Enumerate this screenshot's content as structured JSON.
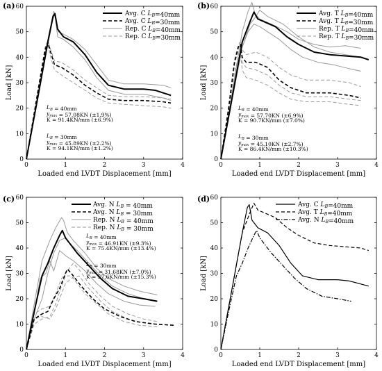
{
  "figure": {
    "panels": [
      "(a)",
      "(b)",
      "(c)",
      "(d)"
    ]
  },
  "chart_data": [
    {
      "type": "line",
      "panel_label": "(a)",
      "xlabel": "Loaded end LVDT Displacement [mm]",
      "ylabel": "Load [kN]",
      "xlim": [
        0,
        4
      ],
      "ylim": [
        0,
        60
      ],
      "xticks": [
        "0",
        "1",
        "2",
        "3",
        "4"
      ],
      "yticks": [
        "0",
        "10",
        "20",
        "30",
        "40",
        "50",
        "60"
      ],
      "legend": {
        "position": "top-right",
        "entries": [
          {
            "label": "Avg. C LB=40mm",
            "style": "solid-bold"
          },
          {
            "label": "Avg. C LB=30mm",
            "style": "dashed-bold"
          },
          {
            "label": "Rep. C LB=40mm",
            "style": "solid-gray"
          },
          {
            "label": "Rep. C LB=30mm",
            "style": "dashed-gray"
          }
        ]
      },
      "annotations": [
        "LB = 40mm",
        "ymax = 57.08KN (±1.9%)",
        "K = 91.4KN/mm (±6.9%)",
        "LB = 30mm",
        "ymax = 45.89KN (±2.2%)",
        "K = 94.1KN/mm (±1.2%)"
      ],
      "series": [
        {
          "style": "solid-bold",
          "x": [
            0,
            0.3,
            0.55,
            0.68,
            0.73,
            0.8,
            0.95,
            1.2,
            1.5,
            1.8,
            2.1,
            2.5,
            3.0,
            3.3,
            3.7
          ],
          "y": [
            0,
            25,
            46,
            56,
            57.1,
            51,
            48,
            46,
            41,
            34,
            29,
            27.5,
            27.5,
            27,
            25
          ]
        },
        {
          "style": "dashed-bold",
          "x": [
            0,
            0.3,
            0.48,
            0.55,
            0.62,
            0.72,
            0.9,
            1.2,
            1.5,
            1.8,
            2.1,
            2.5,
            3.0,
            3.5,
            3.7
          ],
          "y": [
            0,
            27,
            43,
            45.9,
            42,
            37,
            36,
            33,
            29,
            26,
            23.5,
            23,
            23,
            22.5,
            22
          ]
        },
        {
          "style": "solid-gray",
          "x": [
            0,
            0.3,
            0.55,
            0.7,
            0.75,
            0.82,
            0.95,
            1.2,
            1.5,
            1.8,
            2.1,
            2.5,
            3.0,
            3.5,
            3.7
          ],
          "y": [
            0,
            26,
            47,
            58,
            56,
            50,
            49,
            47,
            43,
            37,
            31,
            29.5,
            29.5,
            29,
            28
          ]
        },
        {
          "style": "solid-gray",
          "x": [
            0,
            0.3,
            0.55,
            0.68,
            0.73,
            0.8,
            0.95,
            1.2,
            1.5,
            1.8,
            2.1,
            2.5,
            3.0,
            3.5,
            3.7
          ],
          "y": [
            0,
            24,
            45,
            55,
            56.5,
            48,
            47,
            44,
            39,
            32,
            27,
            25.5,
            25.5,
            24,
            23
          ]
        },
        {
          "style": "dashed-gray",
          "x": [
            0,
            0.3,
            0.48,
            0.55,
            0.62,
            0.72,
            0.9,
            1.2,
            1.5,
            1.8,
            2.1,
            2.5,
            3.0,
            3.5,
            3.7
          ],
          "y": [
            0,
            28,
            44,
            46.5,
            43,
            38.5,
            38,
            35,
            31,
            28,
            25,
            24.5,
            24.5,
            24,
            23.5
          ]
        },
        {
          "style": "dashed-gray",
          "x": [
            0,
            0.3,
            0.48,
            0.55,
            0.62,
            0.72,
            0.9,
            1.2,
            1.5,
            1.8,
            2.1,
            2.5,
            3.0,
            3.5,
            3.7
          ],
          "y": [
            0,
            26,
            42,
            45,
            40,
            35,
            33,
            30,
            27,
            24,
            22,
            21.5,
            21,
            20.5,
            20
          ]
        }
      ]
    },
    {
      "type": "line",
      "panel_label": "(b)",
      "xlabel": "Loaded end LVDT Displacement [mm]",
      "ylabel": "Load [kN]",
      "xlim": [
        0,
        4
      ],
      "ylim": [
        0,
        60
      ],
      "xticks": [
        "0",
        "1",
        "2",
        "3",
        "4"
      ],
      "yticks": [
        "0",
        "10",
        "20",
        "30",
        "40",
        "50",
        "60"
      ],
      "legend": {
        "position": "top-right",
        "entries": [
          {
            "label": "Avg. T LB=40mm",
            "style": "solid-bold"
          },
          {
            "label": "Avg. T LB=30mm",
            "style": "dashed-bold"
          },
          {
            "label": "Rep. T LB=40mm",
            "style": "solid-gray"
          },
          {
            "label": "Rep. T LB=30mm",
            "style": "dashed-gray"
          }
        ]
      },
      "annotations": [
        "LB = 40mm",
        "ymax = 57.70KN (±6.9%)",
        "K = 90.7KN/mm (±7.0%)",
        "LB = 30mm",
        "ymax = 45.10KN (±2.7%)",
        "K = 86.4KN/mm (±10.3%)"
      ],
      "series": [
        {
          "style": "solid-bold",
          "x": [
            0,
            0.3,
            0.55,
            0.75,
            0.85,
            0.95,
            1.1,
            1.4,
            1.7,
            2.0,
            2.4,
            2.8,
            3.2,
            3.6,
            3.8
          ],
          "y": [
            0,
            25,
            46,
            54,
            57.7,
            55,
            54,
            52,
            48,
            45,
            42,
            41,
            40.5,
            40,
            39
          ]
        },
        {
          "style": "dashed-bold",
          "x": [
            0,
            0.2,
            0.35,
            0.45,
            0.5,
            0.55,
            0.65,
            0.9,
            1.2,
            1.5,
            1.8,
            2.2,
            2.8,
            3.3,
            3.6
          ],
          "y": [
            0,
            20,
            38,
            44,
            45.1,
            40,
            38,
            38,
            36,
            31,
            28,
            26,
            26,
            25,
            24
          ]
        },
        {
          "style": "solid-gray",
          "x": [
            0,
            0.3,
            0.55,
            0.7,
            0.8,
            0.88,
            1.0,
            1.3,
            1.7,
            2.0,
            2.4,
            2.8,
            3.2,
            3.6
          ],
          "y": [
            0,
            27,
            50,
            58,
            61.5,
            57,
            55,
            53,
            50,
            47,
            45,
            44,
            44.5,
            43.5
          ]
        },
        {
          "style": "solid-gray",
          "x": [
            0,
            0.3,
            0.55,
            0.75,
            0.9,
            1.0,
            1.2,
            1.6,
            2.0,
            2.4,
            2.8,
            3.2,
            3.6
          ],
          "y": [
            0,
            24,
            44,
            53,
            56,
            58.5,
            56,
            53,
            48,
            44,
            42,
            41,
            40
          ]
        },
        {
          "style": "solid-gray",
          "x": [
            0,
            0.3,
            0.55,
            0.7,
            0.85,
            1.0,
            1.2,
            1.5,
            1.8,
            2.1,
            2.5,
            2.9,
            3.3,
            3.6
          ],
          "y": [
            0,
            24,
            44,
            50,
            53,
            52,
            50,
            47,
            43,
            40,
            38,
            37,
            35.5,
            34.5
          ]
        },
        {
          "style": "dashed-gray",
          "x": [
            0,
            0.2,
            0.35,
            0.45,
            0.5,
            0.55,
            0.65,
            0.9,
            1.2,
            1.5,
            1.8,
            2.2,
            2.8,
            3.3,
            3.6
          ],
          "y": [
            0,
            21,
            39,
            45,
            46,
            43,
            41,
            42,
            40,
            36,
            33,
            31,
            31,
            30,
            28.5
          ]
        },
        {
          "style": "dashed-gray",
          "x": [
            0,
            0.2,
            0.35,
            0.45,
            0.5,
            0.55,
            0.65,
            0.9,
            1.2,
            1.5,
            1.8,
            2.2,
            2.8,
            3.3,
            3.6
          ],
          "y": [
            0,
            20,
            37,
            43,
            44,
            38,
            36,
            35,
            33,
            29,
            26,
            24.5,
            24.5,
            23.5,
            23
          ]
        },
        {
          "style": "dashed-gray",
          "x": [
            0,
            0.2,
            0.35,
            0.45,
            0.5,
            0.55,
            0.65,
            0.9,
            1.2,
            1.5,
            1.8,
            2.2,
            2.8,
            3.3,
            3.6
          ],
          "y": [
            0,
            18,
            34,
            40,
            42,
            35,
            32,
            31,
            29,
            26,
            23.5,
            22.5,
            22.5,
            21.5,
            21
          ]
        }
      ]
    },
    {
      "type": "line",
      "panel_label": "(c)",
      "xlabel": "Loaded end LVDT Displacement [mm]",
      "ylabel": "Load [kN]",
      "xlim": [
        0,
        4
      ],
      "ylim": [
        0,
        60
      ],
      "xticks": [
        "0",
        "1",
        "2",
        "3",
        "4"
      ],
      "yticks": [
        "0",
        "10",
        "20",
        "30",
        "40",
        "50",
        "60"
      ],
      "legend": {
        "position": "top-right",
        "entries": [
          {
            "label": "Avg. N LB = 40mm",
            "style": "solid-bold"
          },
          {
            "label": "Avg. N LB = 30mm",
            "style": "dashed-bold"
          },
          {
            "label": "Rep. N LB = 40mm",
            "style": "solid-gray"
          },
          {
            "label": "Rep. N LB = 30mm",
            "style": "dashed-gray"
          }
        ]
      },
      "annotations": [
        "LB = 40mm",
        "ymax = 46.91KN (±9.3%)",
        "K = 75.4KN/mm (±13.4%)",
        "LB = 30mm",
        "ymax = 31.68KN (±7.0%)",
        "K = 57.6KN/mm (±15.3%)"
      ],
      "series": [
        {
          "style": "solid-bold",
          "x": [
            0,
            0.2,
            0.4,
            0.55,
            0.7,
            0.85,
            0.92,
            1.0,
            1.1,
            1.3,
            1.6,
            1.9,
            2.2,
            2.6,
            3.0,
            3.35
          ],
          "y": [
            0,
            15,
            29,
            34,
            40,
            45,
            46.9,
            44,
            42,
            38,
            33,
            28,
            24,
            21,
            20,
            19
          ]
        },
        {
          "style": "dashed-bold",
          "x": [
            0,
            0.2,
            0.4,
            0.55,
            0.7,
            0.85,
            1.0,
            1.05,
            1.15,
            1.4,
            1.7,
            2.0,
            2.4,
            2.8,
            3.3,
            3.8
          ],
          "y": [
            0,
            12,
            14,
            15,
            20,
            24,
            30,
            31.7,
            30,
            25,
            20,
            16,
            13,
            11,
            10,
            9.5
          ]
        },
        {
          "style": "solid-gray",
          "x": [
            0,
            0.2,
            0.4,
            0.6,
            0.75,
            0.9,
            0.95,
            1.05,
            1.2,
            1.5,
            1.8,
            2.1,
            2.5,
            2.9,
            3.35
          ],
          "y": [
            0,
            18,
            35,
            43,
            48,
            52,
            51,
            46,
            43,
            38,
            32,
            28,
            25,
            23,
            21.5
          ]
        },
        {
          "style": "solid-gray",
          "x": [
            0,
            0.2,
            0.4,
            0.55,
            0.7,
            0.85,
            1.0,
            1.1,
            1.3,
            1.6,
            1.9,
            2.2,
            2.6,
            3.0,
            3.3
          ],
          "y": [
            0,
            12,
            20,
            30,
            38,
            43,
            44,
            42,
            39,
            34,
            29,
            25,
            22,
            20,
            19
          ]
        },
        {
          "style": "solid-gray",
          "x": [
            0,
            0.2,
            0.35,
            0.5,
            0.6,
            0.7,
            0.85,
            1.0,
            1.2,
            1.5,
            1.8,
            2.1,
            2.5,
            2.9,
            3.3
          ],
          "y": [
            0,
            14,
            28,
            30,
            35,
            31,
            39,
            37,
            35,
            31,
            26,
            22,
            19,
            17.5,
            17
          ]
        },
        {
          "style": "dashed-gray",
          "x": [
            0,
            0.2,
            0.4,
            0.6,
            0.75,
            0.9,
            1.05,
            1.2,
            1.35,
            1.6,
            1.9,
            2.2,
            2.6,
            3.0,
            3.35
          ],
          "y": [
            0,
            14,
            16,
            17,
            22,
            28,
            31,
            34,
            31.5,
            26,
            21,
            17,
            14,
            12,
            11
          ]
        },
        {
          "style": "dashed-gray",
          "x": [
            0,
            0.2,
            0.4,
            0.6,
            0.75,
            0.9,
            1.0,
            1.15,
            1.3,
            1.5,
            1.8,
            2.1,
            2.5,
            2.9,
            3.35
          ],
          "y": [
            0,
            10,
            12,
            13,
            18,
            25,
            29,
            29,
            26,
            22,
            18,
            14,
            11,
            9.5,
            9
          ]
        },
        {
          "style": "dashed-gray",
          "x": [
            0,
            0.2,
            0.4,
            0.6,
            0.75,
            0.9,
            1.0,
            1.15,
            1.35,
            1.6,
            1.9,
            2.2,
            2.6,
            3.0,
            3.35
          ],
          "y": [
            0,
            12,
            13,
            12,
            16,
            22,
            26,
            28,
            29,
            24,
            19,
            15,
            12,
            10.5,
            10
          ]
        }
      ]
    },
    {
      "type": "line",
      "panel_label": "(d)",
      "xlabel": "Loaded end LVDT Displacement [mm]",
      "ylabel": "Load [kN]",
      "xlim": [
        0,
        4
      ],
      "ylim": [
        0,
        60
      ],
      "xticks": [
        "0",
        "1",
        "2",
        "3",
        "4"
      ],
      "yticks": [
        "0",
        "10",
        "20",
        "30",
        "40",
        "50",
        "60"
      ],
      "legend": {
        "position": "top-right",
        "entries": [
          {
            "label": "Avg. C LB=40mm",
            "style": "solid"
          },
          {
            "label": "Avg. T LB=40mm",
            "style": "dashed"
          },
          {
            "label": "Avg. N LB=40mm",
            "style": "dashdot"
          }
        ]
      },
      "annotations": [],
      "series": [
        {
          "style": "solid",
          "x": [
            0,
            0.3,
            0.55,
            0.68,
            0.73,
            0.8,
            0.95,
            1.2,
            1.5,
            1.8,
            2.1,
            2.5,
            3.0,
            3.3,
            3.8
          ],
          "y": [
            0,
            25,
            46,
            56,
            57.1,
            51,
            48,
            46,
            41,
            34,
            29,
            27.5,
            27.5,
            27,
            25
          ]
        },
        {
          "style": "dashed",
          "x": [
            0,
            0.3,
            0.55,
            0.75,
            0.85,
            0.95,
            1.1,
            1.4,
            1.7,
            2.0,
            2.4,
            2.8,
            3.2,
            3.6,
            3.8
          ],
          "y": [
            0,
            25,
            46,
            54,
            57.7,
            55,
            54,
            52,
            48,
            45,
            42,
            41,
            40.5,
            40,
            39
          ]
        },
        {
          "style": "dashdot",
          "x": [
            0,
            0.2,
            0.4,
            0.55,
            0.7,
            0.85,
            0.92,
            1.0,
            1.1,
            1.3,
            1.6,
            1.9,
            2.2,
            2.6,
            3.0,
            3.35
          ],
          "y": [
            0,
            15,
            29,
            34,
            40,
            45,
            46.9,
            44,
            42,
            38,
            33,
            28,
            24,
            21,
            20,
            19
          ]
        }
      ]
    }
  ]
}
